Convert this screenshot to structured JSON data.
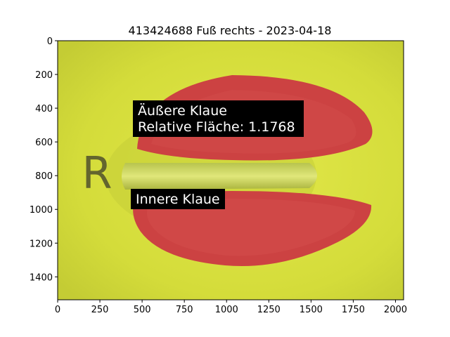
{
  "figure": {
    "title": "413424688 Fuß rechts - 2023-04-18"
  },
  "image": {
    "width_units": 2048,
    "height_units": 1536,
    "colors": {
      "background": "#d6df3a",
      "claw": "#cc4040",
      "bridge": "#c9d35a",
      "label_box": "#000000",
      "label_text": "#ffffff"
    }
  },
  "axes": {
    "x_ticks": [
      "0",
      "250",
      "500",
      "750",
      "1000",
      "1250",
      "1500",
      "1750",
      "2000"
    ],
    "x_tick_values": [
      0,
      250,
      500,
      750,
      1000,
      1250,
      1500,
      1750,
      2000
    ],
    "y_ticks": [
      "0",
      "200",
      "400",
      "600",
      "800",
      "1000",
      "1200",
      "1400"
    ],
    "y_tick_values": [
      0,
      200,
      400,
      600,
      800,
      1000,
      1200,
      1400
    ]
  },
  "annotations": {
    "outer_claw_line1": "Äußere Klaue",
    "outer_claw_line2": "Relative Fläche: 1.1768",
    "inner_claw": "Innere Klaue"
  },
  "marker_letter": "R"
}
